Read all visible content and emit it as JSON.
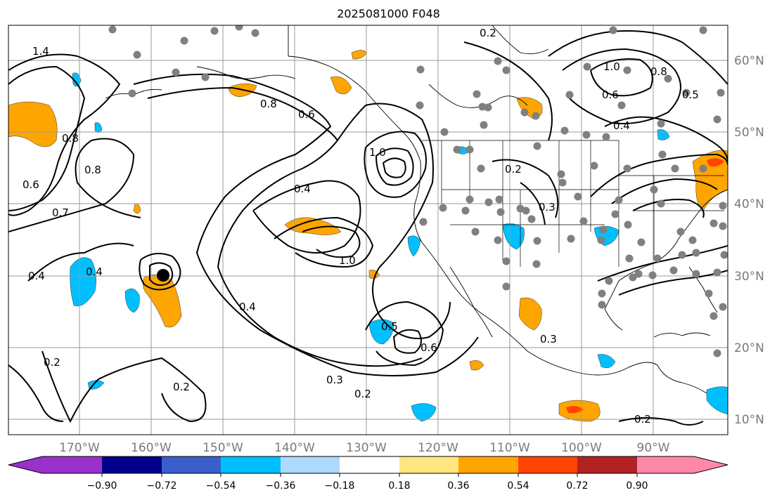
{
  "title": "2025081000 F048",
  "map": {
    "lon_labels": [
      "170°W",
      "160°W",
      "150°W",
      "140°W",
      "130°W",
      "120°W",
      "110°W",
      "100°W",
      "90°W"
    ],
    "lat_labels": [
      "60°N",
      "50°N",
      "40°N",
      "30°N",
      "20°N",
      "10°N"
    ],
    "contour_labels": [
      "0.2",
      "0.4",
      "0.4",
      "0.4",
      "0.6",
      "0.8",
      "0.8",
      "0.7",
      "0.6",
      "1.0",
      "1.4",
      "0.8",
      "0.4",
      "0.2",
      "0.3",
      "0.2",
      "0.6",
      "0.5",
      "0.3",
      "0.2",
      "0.5",
      "0.6",
      "0.8",
      "1.0",
      "0.4",
      "0.2",
      "0.3",
      "0.2",
      "1.0"
    ],
    "colors": {
      "negative_fill": "#00bfff",
      "positive_fill": "#ffa500",
      "strong_positive_fill": "#ff4500",
      "contour": "#000000",
      "station_dot": "#808080"
    }
  },
  "colorbar": {
    "ticks": [
      "−0.90",
      "−0.72",
      "−0.54",
      "−0.36",
      "−0.18",
      "0.18",
      "0.36",
      "0.54",
      "0.72",
      "0.90"
    ],
    "colors": [
      "#9932cc",
      "#00008b",
      "#3a5fcd",
      "#00bfff",
      "#add8ff",
      "#ffffff",
      "#ffe680",
      "#ffa500",
      "#ff4500",
      "#b22222",
      "#ff88aa"
    ]
  }
}
